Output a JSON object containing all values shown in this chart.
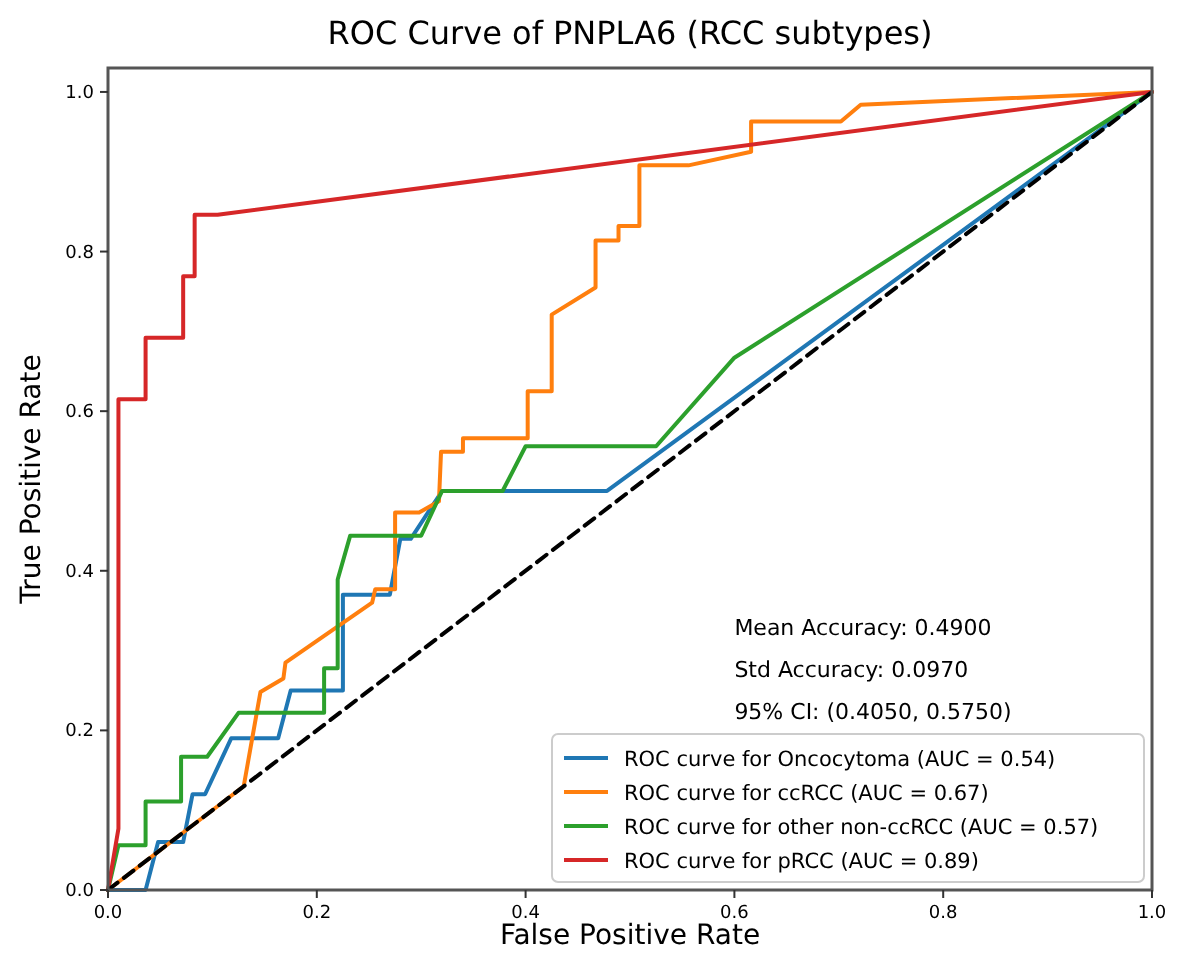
{
  "chart_data": {
    "type": "line",
    "title": "ROC Curve of PNPLA6 (RCC subtypes)",
    "xlabel": "False Positive Rate",
    "ylabel": "True Positive Rate",
    "xlim": [
      0,
      1
    ],
    "ylim": [
      0,
      1.03
    ],
    "xticks": [
      {
        "value": 0,
        "label": "0.0"
      },
      {
        "value": 0.2,
        "label": "0.2"
      },
      {
        "value": 0.4,
        "label": "0.4"
      },
      {
        "value": 0.6,
        "label": "0.6"
      },
      {
        "value": 0.8,
        "label": "0.8"
      },
      {
        "value": 1,
        "label": "1.0"
      }
    ],
    "yticks": [
      {
        "value": 0,
        "label": "0.0"
      },
      {
        "value": 0.2,
        "label": "0.2"
      },
      {
        "value": 0.4,
        "label": "0.4"
      },
      {
        "value": 0.6,
        "label": "0.6"
      },
      {
        "value": 0.8,
        "label": "0.8"
      },
      {
        "value": 1,
        "label": "1.0"
      }
    ],
    "grid": false,
    "legend": "bottom right",
    "annotations": [
      "Mean Accuracy: 0.4900",
      "Std Accuracy: 0.0970",
      "95% CI: (0.4050, 0.5750)"
    ],
    "series": [
      {
        "name": "ROC curve for Oncocytoma (AUC = 0.54)",
        "color": "#1f77b4",
        "x": [
          0,
          0.036,
          0.048,
          0.072,
          0.081,
          0.093,
          0.118,
          0.163,
          0.175,
          0.225,
          0.225,
          0.27,
          0.28,
          0.29,
          0.32,
          0.343,
          0.478,
          1
        ],
        "values": [
          0,
          0,
          0.06,
          0.06,
          0.12,
          0.12,
          0.19,
          0.19,
          0.25,
          0.25,
          0.37,
          0.37,
          0.44,
          0.44,
          0.5,
          0.5,
          0.5,
          1
        ]
      },
      {
        "name": "ROC curve for ccRCC (AUC = 0.67)",
        "color": "#ff7f0e",
        "x": [
          0,
          0.13,
          0.146,
          0.168,
          0.17,
          0.253,
          0.256,
          0.275,
          0.275,
          0.298,
          0.317,
          0.319,
          0.34,
          0.34,
          0.402,
          0.402,
          0.425,
          0.425,
          0.467,
          0.467,
          0.489,
          0.489,
          0.509,
          0.509,
          0.556,
          0.616,
          0.616,
          0.702,
          0.721,
          1
        ],
        "values": [
          0,
          0.13,
          0.248,
          0.265,
          0.285,
          0.36,
          0.377,
          0.377,
          0.473,
          0.473,
          0.487,
          0.549,
          0.549,
          0.566,
          0.566,
          0.625,
          0.625,
          0.721,
          0.755,
          0.814,
          0.814,
          0.832,
          0.832,
          0.908,
          0.908,
          0.925,
          0.963,
          0.963,
          0.984,
          1
        ]
      },
      {
        "name": "ROC curve for other non-ccRCC (AUC = 0.57)",
        "color": "#2ca02c",
        "x": [
          0,
          0.01,
          0.036,
          0.036,
          0.07,
          0.07,
          0.095,
          0.125,
          0.207,
          0.207,
          0.22,
          0.22,
          0.232,
          0.3,
          0.32,
          0.378,
          0.4,
          0.525,
          0.6,
          1
        ],
        "values": [
          0,
          0.056,
          0.056,
          0.111,
          0.111,
          0.167,
          0.167,
          0.222,
          0.222,
          0.278,
          0.278,
          0.389,
          0.444,
          0.444,
          0.5,
          0.5,
          0.556,
          0.556,
          0.667,
          1
        ]
      },
      {
        "name": "ROC curve for pRCC (AUC = 0.89)",
        "color": "#d62728",
        "x": [
          0,
          0.01,
          0.01,
          0.036,
          0.036,
          0.072,
          0.072,
          0.083,
          0.083,
          0.105,
          1
        ],
        "values": [
          0,
          0.077,
          0.615,
          0.615,
          0.692,
          0.692,
          0.769,
          0.769,
          0.846,
          0.846,
          1
        ]
      },
      {
        "color": "#000000",
        "line_style": "dashed",
        "x": [
          0,
          1
        ],
        "values": [
          0,
          1
        ]
      }
    ]
  }
}
